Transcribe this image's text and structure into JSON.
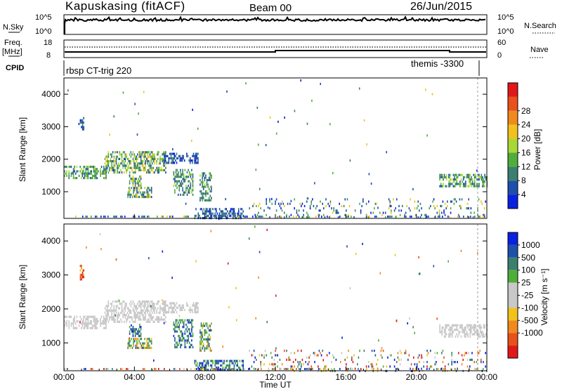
{
  "header": {
    "station": "Kapuskasing (fitACF)",
    "beam": "Beam 00",
    "date": "26/Jun/2015"
  },
  "panel_nsky": {
    "left_label": "N.Sky",
    "right_label": "N.Search",
    "left_ticks": [
      "10^5",
      "10^0"
    ],
    "right_ticks": [
      "10^5",
      "10^0"
    ]
  },
  "panel_freq": {
    "left_label": "Freq.",
    "left_unit": "[MHz]",
    "right_label": "Nave",
    "left_ticks": [
      "18",
      "8"
    ],
    "right_ticks": [
      "60",
      "0"
    ]
  },
  "panel_cpid": {
    "label": "CPID",
    "left_program": "rbsp CT-trig 220",
    "right_program": "themis -3300"
  },
  "colors": {
    "power": [
      "#0a20e0",
      "#1e4faa",
      "#3b7f6f",
      "#4fae3a",
      "#a8d838",
      "#f2c21c",
      "#f08a1c",
      "#e8501c",
      "#e01818"
    ],
    "velocity": [
      "#e01818",
      "#e8501c",
      "#f08a1c",
      "#f2c21c",
      "#c8c8c8",
      "#c8c8c8",
      "#4fae3a",
      "#3b7f6f",
      "#1e4faa",
      "#0a20e0"
    ]
  },
  "chart_data": [
    {
      "type": "heatmap",
      "name": "Power",
      "ylabel": "Slant Range [km]",
      "colorbar_label": "Power [dB]",
      "colorbar_ticks": [
        "4",
        "8",
        "12",
        "16",
        "20",
        "24",
        "28"
      ],
      "x_range": [
        0,
        24
      ],
      "ylim": [
        180,
        4500
      ],
      "y_ticks": [
        "1000",
        "2000",
        "3000",
        "4000"
      ],
      "regions": [
        {
          "t0": 0.0,
          "t1": 2.4,
          "r0": 1420,
          "r1": 1800,
          "level": "mid-low"
        },
        {
          "t0": 2.3,
          "t1": 5.8,
          "r0": 1600,
          "r1": 2250,
          "level": "mid"
        },
        {
          "t0": 5.6,
          "t1": 7.6,
          "r0": 1900,
          "r1": 2200,
          "level": "low"
        },
        {
          "t0": 3.7,
          "t1": 4.4,
          "r0": 1200,
          "r1": 1500,
          "level": "mid"
        },
        {
          "t0": 3.6,
          "t1": 5.0,
          "r0": 850,
          "r1": 1150,
          "level": "mid"
        },
        {
          "t0": 6.2,
          "t1": 7.3,
          "r0": 900,
          "r1": 1700,
          "level": "low-mid"
        },
        {
          "t0": 7.7,
          "t1": 8.4,
          "r0": 750,
          "r1": 1600,
          "level": "low-mid"
        },
        {
          "t0": 7.4,
          "t1": 10.2,
          "r0": 200,
          "r1": 500,
          "level": "low"
        },
        {
          "t0": 0.9,
          "t1": 1.1,
          "r0": 2900,
          "r1": 3300,
          "level": "low"
        },
        {
          "t0": 21.3,
          "t1": 24.0,
          "r0": 1200,
          "r1": 1550,
          "level": "low-mid"
        },
        {
          "t0": 10.5,
          "t1": 24.0,
          "r0": 200,
          "r1": 800,
          "level": "sparse"
        }
      ]
    },
    {
      "type": "heatmap",
      "name": "Velocity",
      "ylabel": "Slant Range [km]",
      "xlabel": "Time UT",
      "colorbar_label": "Velocity [m s⁻¹]",
      "colorbar_ticks": [
        "1000",
        "500",
        "100",
        "25",
        "-25",
        "-100",
        "-500",
        "-1000"
      ],
      "x_ticks": [
        "00:00",
        "04:00",
        "08:00",
        "12:00",
        "16:00",
        "20:00",
        "00:00"
      ],
      "x_range": [
        0,
        24
      ],
      "ylim": [
        180,
        4500
      ],
      "y_ticks": [
        "1000",
        "2000",
        "3000",
        "4000"
      ],
      "regions": [
        {
          "t0": 0.0,
          "t1": 2.4,
          "r0": 1420,
          "r1": 1800,
          "vel": "ground"
        },
        {
          "t0": 2.3,
          "t1": 5.8,
          "r0": 1600,
          "r1": 2250,
          "vel": "ground"
        },
        {
          "t0": 5.6,
          "t1": 7.6,
          "r0": 1900,
          "r1": 2200,
          "vel": "ground"
        },
        {
          "t0": 3.7,
          "t1": 4.4,
          "r0": 1200,
          "r1": 1500,
          "vel": "positive"
        },
        {
          "t0": 3.6,
          "t1": 5.0,
          "r0": 850,
          "r1": 1150,
          "vel": "mixed"
        },
        {
          "t0": 6.2,
          "t1": 7.3,
          "r0": 900,
          "r1": 1700,
          "vel": "positive"
        },
        {
          "t0": 7.7,
          "t1": 8.4,
          "r0": 750,
          "r1": 1600,
          "vel": "mixed"
        },
        {
          "t0": 7.4,
          "t1": 10.2,
          "r0": 200,
          "r1": 500,
          "vel": "positive"
        },
        {
          "t0": 0.9,
          "t1": 1.1,
          "r0": 2900,
          "r1": 3300,
          "vel": "negative"
        },
        {
          "t0": 21.3,
          "t1": 24.0,
          "r0": 1200,
          "r1": 1550,
          "vel": "ground"
        },
        {
          "t0": 10.5,
          "t1": 24.0,
          "r0": 200,
          "r1": 800,
          "vel": "sparse"
        }
      ]
    }
  ]
}
